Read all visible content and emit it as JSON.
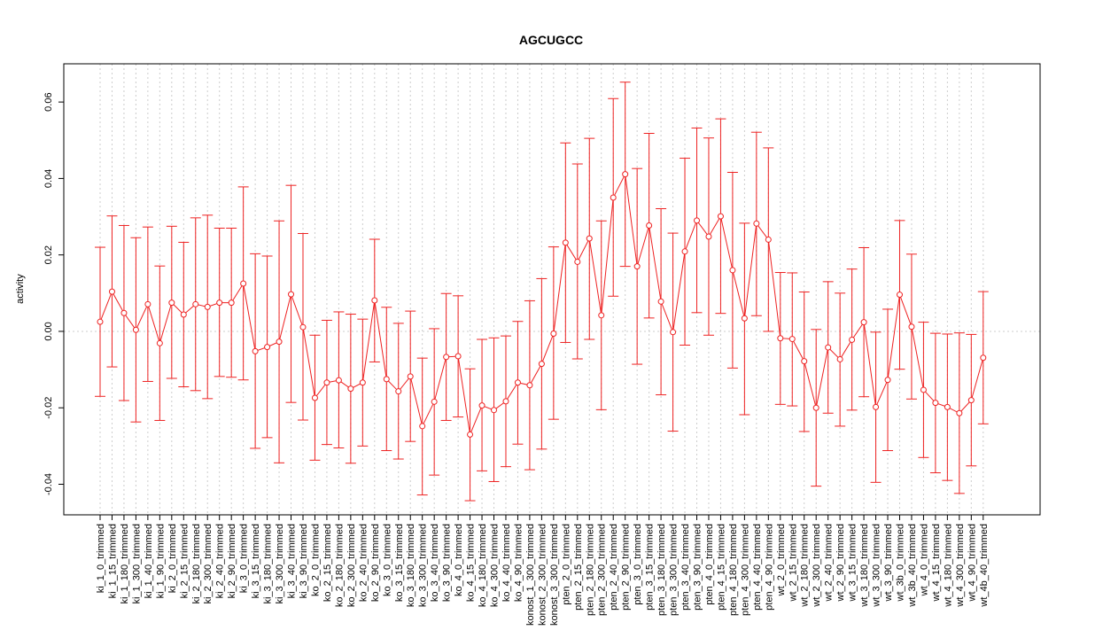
{
  "chart_data": {
    "type": "line",
    "title": "AGCUGCC",
    "xlabel": "",
    "ylabel": "activity",
    "ylim": [
      -0.048,
      0.07
    ],
    "yticks": [
      -0.04,
      -0.02,
      0.0,
      0.02,
      0.04,
      0.06
    ],
    "ytick_labels": [
      "-0.04",
      "-0.02",
      "0.00",
      "0.02",
      "0.04",
      "0.06"
    ],
    "grid": true,
    "legend": "none",
    "colors": {
      "series": "#ee2222",
      "grid": "#cccccc",
      "axis": "#000000"
    },
    "categories": [
      "ki_1_0_trimmed",
      "ki_1_15_trimmed",
      "ki_1_180_trimmed",
      "ki_1_300_trimmed",
      "ki_1_40_trimmed",
      "ki_1_90_trimmed",
      "ki_2_0_trimmed",
      "ki_2_15_trimmed",
      "ki_2_180_trimmed",
      "ki_2_300_trimmed",
      "ki_2_40_trimmed",
      "ki_2_90_trimmed",
      "ki_3_0_trimmed",
      "ki_3_15_trimmed",
      "ki_3_180_trimmed",
      "ki_3_300_trimmed",
      "ki_3_40_trimmed",
      "ki_3_90_trimmed",
      "ko_2_0_trimmed",
      "ko_2_15_trimmed",
      "ko_2_180_trimmed",
      "ko_2_300_trimmed",
      "ko_2_40_trimmed",
      "ko_2_90_trimmed",
      "ko_3_0_trimmed",
      "ko_3_15_trimmed",
      "ko_3_180_trimmed",
      "ko_3_300_trimmed",
      "ko_3_40_trimmed",
      "ko_3_90_trimmed",
      "ko_4_0_trimmed",
      "ko_4_15_trimmed",
      "ko_4_180_trimmed",
      "ko_4_300_trimmed",
      "ko_4_40_trimmed",
      "ko_4_90_trimmed",
      "konost_1_300_trimmed",
      "konost_2_300_trimmed",
      "konost_3_300_trimmed",
      "pten_2_0_trimmed",
      "pten_2_15_trimmed",
      "pten_2_180_trimmed",
      "pten_2_300_trimmed",
      "pten_2_40_trimmed",
      "pten_2_90_trimmed",
      "pten_3_0_trimmed",
      "pten_3_15_trimmed",
      "pten_3_180_trimmed",
      "pten_3_300_trimmed",
      "pten_3_40_trimmed",
      "pten_3_90_trimmed",
      "pten_4_0_trimmed",
      "pten_4_15_trimmed",
      "pten_4_180_trimmed",
      "pten_4_300_trimmed",
      "pten_4_40_trimmed",
      "pten_4_90_trimmed",
      "wt_2_0_trimmed",
      "wt_2_15_trimmed",
      "wt_2_180_trimmed",
      "wt_2_300_trimmed",
      "wt_2_40_trimmed",
      "wt_2_90_trimmed",
      "wt_3_15_trimmed",
      "wt_3_180_trimmed",
      "wt_3_300_trimmed",
      "wt_3_90_trimmed",
      "wt_3b_0_trimmed",
      "wt_3b_40_trimmed",
      "wt_4_0_trimmed",
      "wt_4_15_trimmed",
      "wt_4_180_trimmed",
      "wt_4_300_trimmed",
      "wt_4_90_trimmed",
      "wt_4b_40_trimmed"
    ],
    "series": [
      {
        "values": [
          0.0025,
          0.0104,
          0.0048,
          0.0004,
          0.0071,
          -0.0031,
          0.0075,
          0.0044,
          0.0071,
          0.0064,
          0.0075,
          0.0075,
          0.0125,
          -0.0052,
          -0.0041,
          -0.0027,
          0.0097,
          0.0011,
          -0.0174,
          -0.0134,
          -0.0128,
          -0.015,
          -0.0134,
          0.0081,
          -0.0125,
          -0.0157,
          -0.0118,
          -0.0248,
          -0.0184,
          -0.0067,
          -0.0065,
          -0.027,
          -0.0194,
          -0.0206,
          -0.0183,
          -0.0134,
          -0.0141,
          -0.0085,
          -0.0006,
          0.0232,
          0.0182,
          0.0243,
          0.0042,
          0.035,
          0.0411,
          0.017,
          0.0277,
          0.0078,
          -0.0002,
          0.0209,
          0.029,
          0.0248,
          0.0301,
          0.016,
          0.0034,
          0.0282,
          0.024,
          -0.0018,
          -0.002,
          -0.0078,
          -0.02,
          -0.0042,
          -0.0073,
          -0.0022,
          0.0024,
          -0.0198,
          -0.0127,
          0.0096,
          0.0012,
          -0.0153,
          -0.0187,
          -0.0198,
          -0.0214,
          -0.018,
          -0.0069
        ],
        "upper": [
          0.022,
          0.0302,
          0.0277,
          0.0245,
          0.0273,
          0.0171,
          0.0275,
          0.0233,
          0.0297,
          0.0304,
          0.027,
          0.027,
          0.0378,
          0.0203,
          0.0197,
          0.0289,
          0.0382,
          0.0256,
          -0.001,
          0.0029,
          0.0051,
          0.0045,
          0.0032,
          0.0241,
          0.0063,
          0.0021,
          0.0053,
          -0.007,
          0.0007,
          0.0099,
          0.0093,
          -0.0098,
          -0.0021,
          -0.0017,
          -0.0012,
          0.0026,
          0.008,
          0.0138,
          0.0221,
          0.0493,
          0.0438,
          0.0505,
          0.0289,
          0.0609,
          0.0652,
          0.0426,
          0.0518,
          0.0321,
          0.0257,
          0.0453,
          0.0532,
          0.0506,
          0.0556,
          0.0416,
          0.0283,
          0.0521,
          0.048,
          0.0154,
          0.0153,
          0.0103,
          0.0005,
          0.013,
          0.01,
          0.0163,
          0.0219,
          -0.0002,
          0.0058,
          0.029,
          0.0202,
          0.0024,
          -0.0005,
          -0.0007,
          -0.0004,
          -0.0008,
          0.0104
        ],
        "lower": [
          -0.017,
          -0.0093,
          -0.0181,
          -0.0237,
          -0.0131,
          -0.0233,
          -0.0123,
          -0.0145,
          -0.0155,
          -0.0176,
          -0.0118,
          -0.012,
          -0.0127,
          -0.0306,
          -0.0278,
          -0.0344,
          -0.0186,
          -0.0232,
          -0.0337,
          -0.0296,
          -0.0305,
          -0.0345,
          -0.03,
          -0.008,
          -0.0312,
          -0.0334,
          -0.0288,
          -0.0428,
          -0.0376,
          -0.0233,
          -0.0224,
          -0.0443,
          -0.0365,
          -0.0393,
          -0.0354,
          -0.0295,
          -0.0362,
          -0.0308,
          -0.023,
          -0.0029,
          -0.0072,
          -0.0021,
          -0.0205,
          0.0092,
          0.017,
          -0.0086,
          0.0035,
          -0.0166,
          -0.0261,
          -0.0036,
          0.0049,
          -0.001,
          0.0047,
          -0.0096,
          -0.0218,
          0.0041,
          0.0,
          -0.0191,
          -0.0195,
          -0.0262,
          -0.0405,
          -0.0214,
          -0.0248,
          -0.0206,
          -0.0171,
          -0.0395,
          -0.0312,
          -0.0099,
          -0.0177,
          -0.033,
          -0.037,
          -0.039,
          -0.0424,
          -0.0352,
          -0.0242
        ]
      }
    ]
  }
}
